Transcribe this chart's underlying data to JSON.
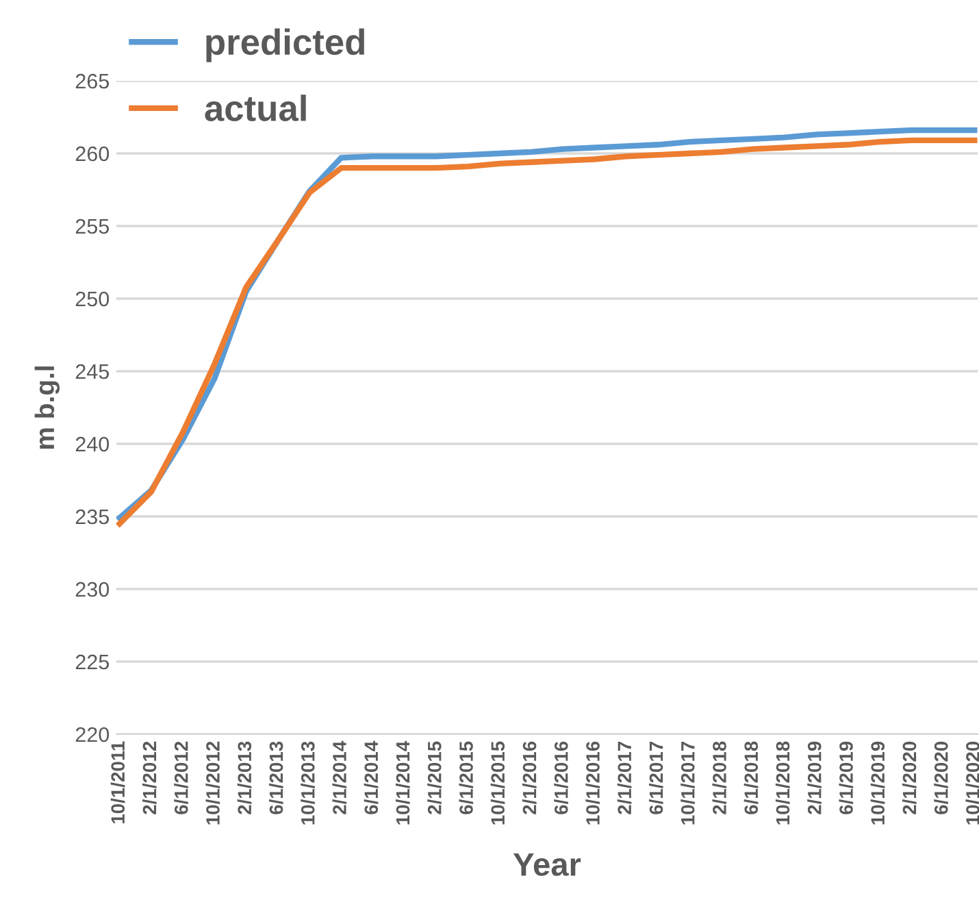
{
  "chart_data": {
    "type": "line",
    "xlabel": "Year",
    "ylabel": "m b.g.l",
    "categories": [
      "10/1/2011",
      "2/1/2012",
      "6/1/2012",
      "10/1/2012",
      "2/1/2013",
      "6/1/2013",
      "10/1/2013",
      "2/1/2014",
      "6/1/2014",
      "10/1/2014",
      "2/1/2015",
      "6/1/2015",
      "10/1/2015",
      "2/1/2016",
      "6/1/2016",
      "10/1/2016",
      "2/1/2017",
      "6/1/2017",
      "10/1/2017",
      "2/1/2018",
      "6/1/2018",
      "10/1/2018",
      "2/1/2019",
      "6/1/2019",
      "10/1/2019",
      "2/1/2020",
      "6/1/2020",
      "10/1/2020"
    ],
    "series": [
      {
        "name": "predicted",
        "color": "#5b9bd5",
        "values": [
          234.9,
          236.8,
          240.3,
          244.5,
          250.5,
          254.0,
          257.4,
          259.7,
          259.8,
          259.8,
          259.8,
          259.9,
          260.0,
          260.1,
          260.3,
          260.4,
          260.5,
          260.6,
          260.8,
          260.9,
          261.0,
          261.1,
          261.3,
          261.4,
          261.5,
          261.6,
          261.6,
          261.6
        ]
      },
      {
        "name": "actual",
        "color": "#ed7d31",
        "values": [
          234.5,
          236.7,
          240.8,
          245.5,
          250.8,
          254.0,
          257.3,
          259.0,
          259.0,
          259.0,
          259.0,
          259.1,
          259.3,
          259.4,
          259.5,
          259.6,
          259.8,
          259.9,
          260.0,
          260.1,
          260.3,
          260.4,
          260.5,
          260.6,
          260.8,
          260.9,
          260.9,
          260.9
        ]
      }
    ],
    "ylim": [
      220,
      265
    ],
    "yticks": [
      220,
      225,
      230,
      235,
      240,
      245,
      250,
      255,
      260,
      265
    ],
    "grid": "y",
    "legend": "top left",
    "marker": "none",
    "line_style": "solid"
  }
}
